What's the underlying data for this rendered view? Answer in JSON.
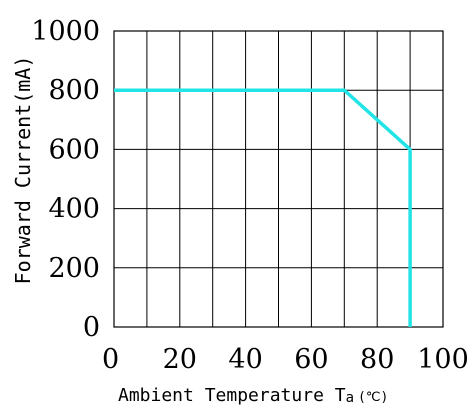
{
  "chart_data": {
    "type": "line",
    "title": "",
    "ylabel": "Forward Current(mA)",
    "xlabel": {
      "main": "Ambient Temperature T",
      "subscript": "a",
      "unit": "(℃)"
    },
    "xlim": [
      0,
      100
    ],
    "ylim": [
      0,
      1000
    ],
    "x_ticks": [
      "0",
      "20",
      "40",
      "60",
      "80",
      "100"
    ],
    "y_ticks": [
      "0",
      "200",
      "400",
      "600",
      "800",
      "1000"
    ],
    "grid": true,
    "grid_x_step": 10,
    "grid_y_step": 200,
    "series": [
      {
        "color": "#22e3e6",
        "x": [
          0,
          70,
          90,
          90
        ],
        "y": [
          800,
          800,
          600,
          0
        ]
      }
    ]
  }
}
